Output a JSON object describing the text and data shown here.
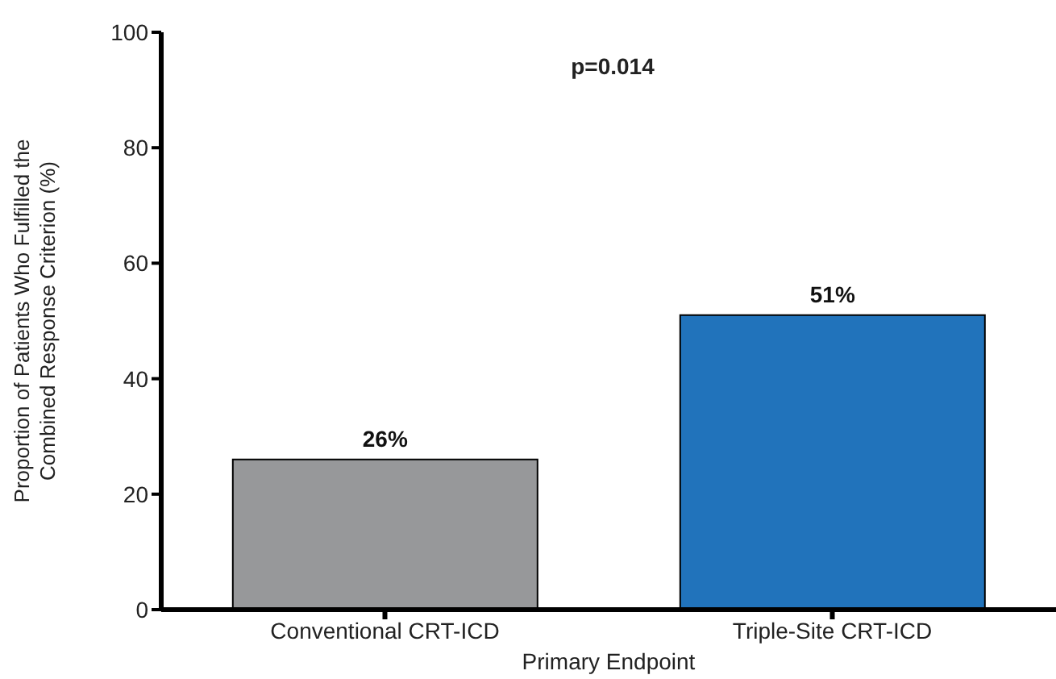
{
  "chart_data": {
    "type": "bar",
    "xlabel": "Primary Endpoint",
    "ylabel": "Proportion of Patients Who Fulfilled the Combined Response Criterion (%)",
    "annotations": [
      "p=0.014"
    ],
    "categories": [
      "Conventional CRT-ICD",
      "Triple-Site CRT-ICD"
    ],
    "values": [
      26,
      51
    ],
    "colors": [
      "#97989a",
      "#2173bb"
    ],
    "value_labels": [
      "26%",
      "51%"
    ],
    "ylim": [
      0,
      100
    ],
    "yticks": [
      0,
      20,
      40,
      60,
      80,
      100
    ],
    "grid": false,
    "legend": false
  }
}
